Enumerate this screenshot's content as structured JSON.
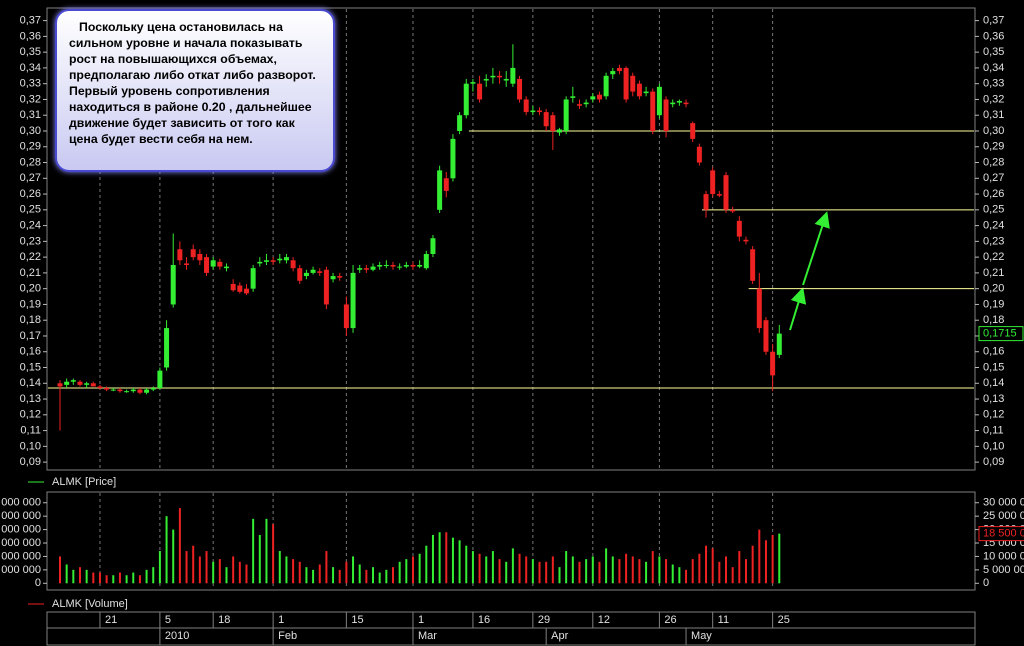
{
  "annotation": "Поскольку цена остановилась на сильном уровне и начала показывать рост на повышающихся объемах, предполагаю либо откат либо разворот. Первый уровень сопротивления находиться в районе 0.20 , дальнейшее движение будет зависить от того как цена будет вести себя на нем.",
  "chart_data": [
    {
      "type": "candlestick",
      "name": "ALMK [Price]",
      "up_color": "#33ee33",
      "down_color": "#ee2222",
      "categories": [
        null,
        null,
        null,
        null,
        null,
        null,
        "21",
        null,
        null,
        null,
        null,
        null,
        null,
        null,
        null,
        "5",
        null,
        null,
        null,
        null,
        null,
        null,
        null,
        "18",
        null,
        null,
        null,
        null,
        null,
        null,
        null,
        null,
        "1",
        null,
        null,
        null,
        null,
        null,
        null,
        null,
        null,
        null,
        null,
        "15",
        null,
        null,
        null,
        null,
        null,
        null,
        null,
        null,
        null,
        "1",
        null,
        null,
        null,
        null,
        null,
        null,
        null,
        null,
        "16",
        null,
        null,
        null,
        null,
        null,
        null,
        null,
        null,
        "29",
        null,
        null,
        null,
        null,
        null,
        null,
        null,
        null,
        "12",
        null,
        null,
        null,
        null,
        null,
        null,
        null,
        null,
        null,
        "26",
        null,
        null,
        null,
        null,
        null,
        null,
        null,
        "11",
        null,
        null,
        null,
        null,
        null,
        null,
        null,
        null,
        "25",
        null
      ],
      "months": [
        null,
        null,
        null,
        null,
        null,
        null,
        null,
        null,
        null,
        null,
        null,
        null,
        null,
        null,
        null,
        "2010",
        null,
        null,
        null,
        null,
        null,
        null,
        null,
        null,
        null,
        null,
        null,
        null,
        null,
        null,
        null,
        null,
        "Feb",
        null,
        null,
        null,
        null,
        null,
        null,
        null,
        null,
        null,
        null,
        null,
        null,
        null,
        null,
        null,
        null,
        null,
        null,
        null,
        null,
        "Mar",
        null,
        null,
        null,
        null,
        null,
        null,
        null,
        null,
        null,
        null,
        null,
        null,
        null,
        null,
        null,
        null,
        null,
        null,
        null,
        "Apr",
        null,
        null,
        null,
        null,
        null,
        null,
        null,
        null,
        null,
        null,
        null,
        null,
        null,
        null,
        null,
        null,
        null,
        null,
        null,
        null,
        "May",
        null,
        null,
        null,
        null,
        null,
        null,
        null,
        null,
        null,
        null,
        null,
        null,
        null
      ],
      "open": [
        0.14,
        0.139,
        0.141,
        0.141,
        0.139,
        0.14,
        0.138,
        0.137,
        0.136,
        0.136,
        0.135,
        0.135,
        0.136,
        0.134,
        0.136,
        0.137,
        0.15,
        0.19,
        0.225,
        0.216,
        0.225,
        0.222,
        0.22,
        0.214,
        0.217,
        0.213,
        0.203,
        0.202,
        0.2,
        0.2,
        0.216,
        0.217,
        0.218,
        0.218,
        0.218,
        0.218,
        0.213,
        0.208,
        0.21,
        0.211,
        0.212,
        0.206,
        0.208,
        0.19,
        0.175,
        0.212,
        0.213,
        0.212,
        0.214,
        0.215,
        0.215,
        0.214,
        0.214,
        0.215,
        0.214,
        0.213,
        0.222,
        0.25,
        0.27,
        0.27,
        0.3,
        0.31,
        0.33,
        0.33,
        0.332,
        0.334,
        0.335,
        0.332,
        0.33,
        0.333,
        0.32,
        0.312,
        0.313,
        0.312,
        0.31,
        0.299,
        0.3,
        0.321,
        0.317,
        0.317,
        0.32,
        0.323,
        0.322,
        0.336,
        0.34,
        0.34,
        0.335,
        0.33,
        0.324,
        0.325,
        0.31,
        0.32,
        0.317,
        0.318,
        0.318,
        0.305,
        0.29,
        0.26,
        0.275,
        0.26,
        0.272,
        0.25,
        0.243,
        0.231,
        0.225,
        0.2,
        0.18,
        0.16,
        0.158
      ],
      "high": [
        0.142,
        0.143,
        0.143,
        0.142,
        0.141,
        0.141,
        0.139,
        0.138,
        0.137,
        0.137,
        0.136,
        0.137,
        0.137,
        0.137,
        0.138,
        0.15,
        0.18,
        0.235,
        0.23,
        0.22,
        0.228,
        0.225,
        0.222,
        0.22,
        0.219,
        0.216,
        0.206,
        0.204,
        0.203,
        0.215,
        0.22,
        0.222,
        0.22,
        0.222,
        0.222,
        0.22,
        0.215,
        0.212,
        0.214,
        0.213,
        0.214,
        0.21,
        0.21,
        0.195,
        0.215,
        0.215,
        0.215,
        0.216,
        0.217,
        0.218,
        0.217,
        0.216,
        0.217,
        0.217,
        0.218,
        0.224,
        0.234,
        0.278,
        0.274,
        0.298,
        0.312,
        0.333,
        0.333,
        0.335,
        0.336,
        0.34,
        0.338,
        0.338,
        0.355,
        0.335,
        0.322,
        0.316,
        0.315,
        0.314,
        0.312,
        0.302,
        0.322,
        0.328,
        0.32,
        0.32,
        0.324,
        0.325,
        0.337,
        0.34,
        0.342,
        0.341,
        0.337,
        0.332,
        0.328,
        0.327,
        0.33,
        0.322,
        0.32,
        0.32,
        0.32,
        0.306,
        0.292,
        0.262,
        0.277,
        0.262,
        0.274,
        0.252,
        0.246,
        0.233,
        0.227,
        0.21,
        0.182,
        0.165,
        0.177
      ],
      "low": [
        0.11,
        0.137,
        0.139,
        0.138,
        0.137,
        0.138,
        0.136,
        0.135,
        0.135,
        0.134,
        0.134,
        0.134,
        0.133,
        0.133,
        0.135,
        0.136,
        0.148,
        0.188,
        0.215,
        0.212,
        0.218,
        0.215,
        0.208,
        0.212,
        0.212,
        0.211,
        0.198,
        0.197,
        0.196,
        0.198,
        0.214,
        0.215,
        0.215,
        0.216,
        0.216,
        0.211,
        0.203,
        0.206,
        0.209,
        0.208,
        0.187,
        0.204,
        0.205,
        0.17,
        0.172,
        0.21,
        0.21,
        0.211,
        0.212,
        0.213,
        0.212,
        0.212,
        0.213,
        0.212,
        0.213,
        0.212,
        0.22,
        0.248,
        0.258,
        0.268,
        0.298,
        0.308,
        0.325,
        0.318,
        0.328,
        0.33,
        0.33,
        0.328,
        0.328,
        0.318,
        0.31,
        0.31,
        0.31,
        0.3,
        0.288,
        0.297,
        0.298,
        0.318,
        0.314,
        0.315,
        0.318,
        0.318,
        0.32,
        0.333,
        0.336,
        0.318,
        0.322,
        0.32,
        0.322,
        0.298,
        0.308,
        0.296,
        0.315,
        0.316,
        0.315,
        0.293,
        0.278,
        0.245,
        0.258,
        0.258,
        0.248,
        0.248,
        0.23,
        0.228,
        0.203,
        0.172,
        0.158,
        0.135,
        0.156
      ],
      "close": [
        0.138,
        0.141,
        0.142,
        0.139,
        0.14,
        0.138,
        0.137,
        0.136,
        0.136,
        0.135,
        0.135,
        0.136,
        0.134,
        0.136,
        0.137,
        0.148,
        0.175,
        0.215,
        0.218,
        0.215,
        0.22,
        0.218,
        0.21,
        0.218,
        0.214,
        0.214,
        0.199,
        0.198,
        0.197,
        0.213,
        0.217,
        0.218,
        0.217,
        0.219,
        0.22,
        0.213,
        0.205,
        0.21,
        0.212,
        0.21,
        0.19,
        0.208,
        0.207,
        0.175,
        0.21,
        0.213,
        0.212,
        0.214,
        0.215,
        0.215,
        0.214,
        0.214,
        0.215,
        0.214,
        0.215,
        0.222,
        0.232,
        0.275,
        0.262,
        0.295,
        0.31,
        0.33,
        0.331,
        0.32,
        0.333,
        0.335,
        0.334,
        0.333,
        0.34,
        0.32,
        0.312,
        0.313,
        0.312,
        0.303,
        0.3,
        0.301,
        0.32,
        0.322,
        0.316,
        0.318,
        0.322,
        0.32,
        0.335,
        0.338,
        0.338,
        0.32,
        0.325,
        0.322,
        0.325,
        0.3,
        0.328,
        0.3,
        0.318,
        0.319,
        0.317,
        0.295,
        0.28,
        0.25,
        0.26,
        0.259,
        0.25,
        0.249,
        0.233,
        0.23,
        0.205,
        0.175,
        0.16,
        0.145,
        0.1715
      ],
      "last_label": "0,1715",
      "hlines": [
        {
          "value": 0.137,
          "color": "#ffff99"
        },
        {
          "value": 0.3,
          "start": 62,
          "color": "#ffff99"
        },
        {
          "value": 0.25,
          "start": 97,
          "color": "#ffff99"
        },
        {
          "value": 0.2,
          "start": 104,
          "color": "#ffff99"
        }
      ],
      "ylim": [
        0.085,
        0.378
      ],
      "yticks": [
        {
          "value": 0.37,
          "label": "0,37"
        },
        {
          "value": 0.36,
          "label": "0,36"
        },
        {
          "value": 0.35,
          "label": "0,35"
        },
        {
          "value": 0.34,
          "label": "0,34"
        },
        {
          "value": 0.33,
          "label": "0,33"
        },
        {
          "value": 0.32,
          "label": "0,32"
        },
        {
          "value": 0.31,
          "label": "0,31"
        },
        {
          "value": 0.3,
          "label": "0,30"
        },
        {
          "value": 0.29,
          "label": "0,29"
        },
        {
          "value": 0.28,
          "label": "0,28"
        },
        {
          "value": 0.27,
          "label": "0,27"
        },
        {
          "value": 0.26,
          "label": "0,26"
        },
        {
          "value": 0.25,
          "label": "0,25"
        },
        {
          "value": 0.24,
          "label": "0,24"
        },
        {
          "value": 0.23,
          "label": "0,23"
        },
        {
          "value": 0.22,
          "label": "0,22"
        },
        {
          "value": 0.21,
          "label": "0,21"
        },
        {
          "value": 0.2,
          "label": "0,20"
        },
        {
          "value": 0.19,
          "label": "0,19"
        },
        {
          "value": 0.18,
          "label": "0,18"
        },
        {
          "value": 0.17,
          "label": "0,17"
        },
        {
          "value": 0.16,
          "label": "0,16"
        },
        {
          "value": 0.15,
          "label": "0,15"
        },
        {
          "value": 0.14,
          "label": "0,14"
        },
        {
          "value": 0.13,
          "label": "0,13"
        },
        {
          "value": 0.12,
          "label": "0,12"
        },
        {
          "value": 0.11,
          "label": "0,11"
        },
        {
          "value": 0.1,
          "label": "0,10"
        },
        {
          "value": 0.09,
          "label": "0,09"
        }
      ],
      "legend_color": "#33ee33"
    },
    {
      "type": "bar",
      "name": "ALMK [Volume]",
      "legend_color": "#ee2222",
      "values": [
        10000000,
        7000000,
        5000000,
        6000000,
        5000000,
        4000000,
        4000000,
        3000000,
        3000000,
        4000000,
        3000000,
        4000000,
        3000000,
        5000000,
        6000000,
        12000000,
        25000000,
        20000000,
        28000000,
        12000000,
        14000000,
        10000000,
        12000000,
        8000000,
        9000000,
        6000000,
        10000000,
        8000000,
        7000000,
        24000000,
        18000000,
        24000000,
        22000000,
        12000000,
        10000000,
        9000000,
        8000000,
        6000000,
        5000000,
        7000000,
        12000000,
        6000000,
        5000000,
        8000000,
        10000000,
        7000000,
        5000000,
        6000000,
        4000000,
        5000000,
        6000000,
        8000000,
        9000000,
        10000000,
        11000000,
        14000000,
        18000000,
        19000000,
        19000000,
        17000000,
        16000000,
        14000000,
        12000000,
        11000000,
        10000000,
        12000000,
        9000000,
        8000000,
        13000000,
        11000000,
        10000000,
        9000000,
        8000000,
        8000000,
        10000000,
        6000000,
        12000000,
        10000000,
        8000000,
        9000000,
        10000000,
        8000000,
        13000000,
        10000000,
        9000000,
        11000000,
        10000000,
        9000000,
        8000000,
        12000000,
        10000000,
        9000000,
        7000000,
        6000000,
        5000000,
        9000000,
        11000000,
        14000000,
        13000000,
        8000000,
        10000000,
        6000000,
        12000000,
        9000000,
        14000000,
        20000000,
        16000000,
        18000000,
        18500000
      ],
      "last_label": "18 500 000",
      "ylim": [
        -2500000,
        34000000
      ],
      "yticks": [
        0,
        {
          "value": 5000000,
          "label": "5 000 000"
        },
        {
          "value": 10000000,
          "label": "10 000 000"
        },
        {
          "value": 15000000,
          "label": "15 000 000"
        },
        {
          "value": 20000000,
          "label": "20 000 000"
        },
        {
          "value": 25000000,
          "label": "25 000 000"
        },
        {
          "value": 30000000,
          "label": "30 000 000"
        }
      ]
    }
  ]
}
